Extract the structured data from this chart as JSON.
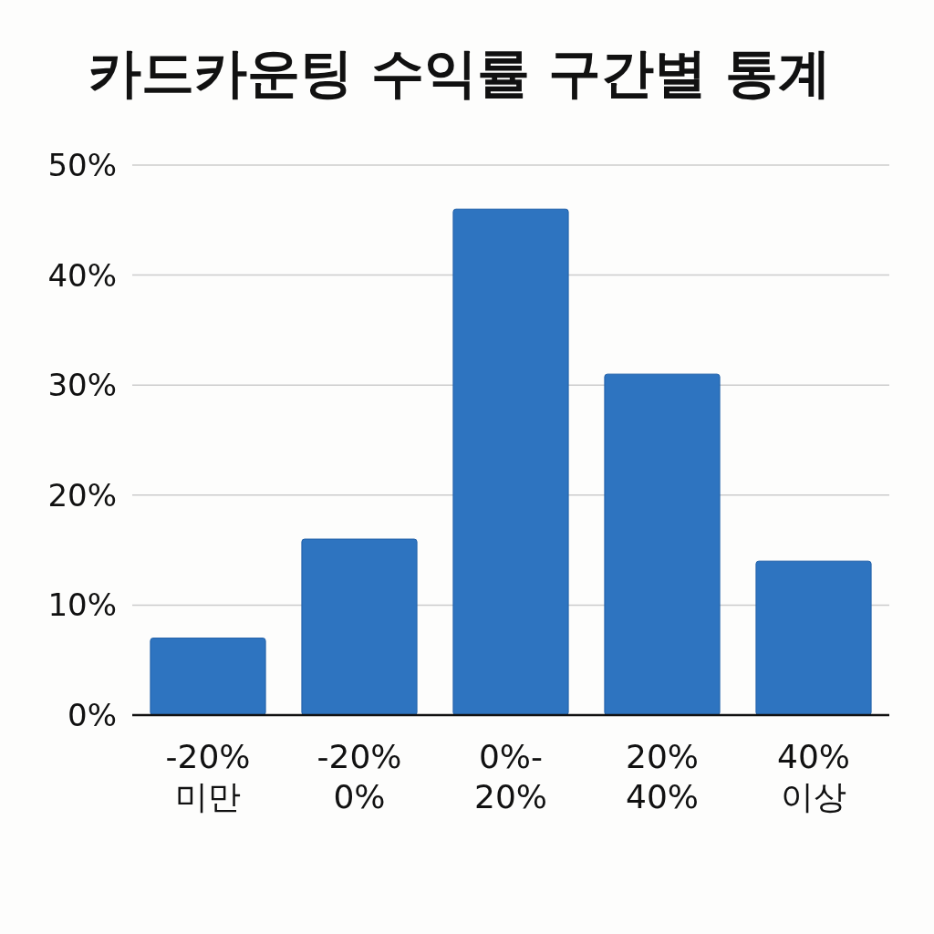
{
  "chart_data": {
    "type": "bar",
    "title": "카드카운팅 수익률 구간별 통계",
    "categories": [
      "-20%\n미만",
      "-20%\n0%",
      "0%-\n20%",
      "20%\n40%",
      "40%\n이상"
    ],
    "values": [
      7,
      16,
      46,
      31,
      14
    ],
    "color": "#2e74c0",
    "ylim": [
      0,
      50
    ],
    "yticks": [
      {
        "value": 0,
        "label": "0%"
      },
      {
        "value": 10,
        "label": "10%"
      },
      {
        "value": 20,
        "label": "20%"
      },
      {
        "value": 30,
        "label": "30%"
      },
      {
        "value": 40,
        "label": "40%"
      },
      {
        "value": 50,
        "label": "50%"
      }
    ],
    "grid": "y"
  }
}
